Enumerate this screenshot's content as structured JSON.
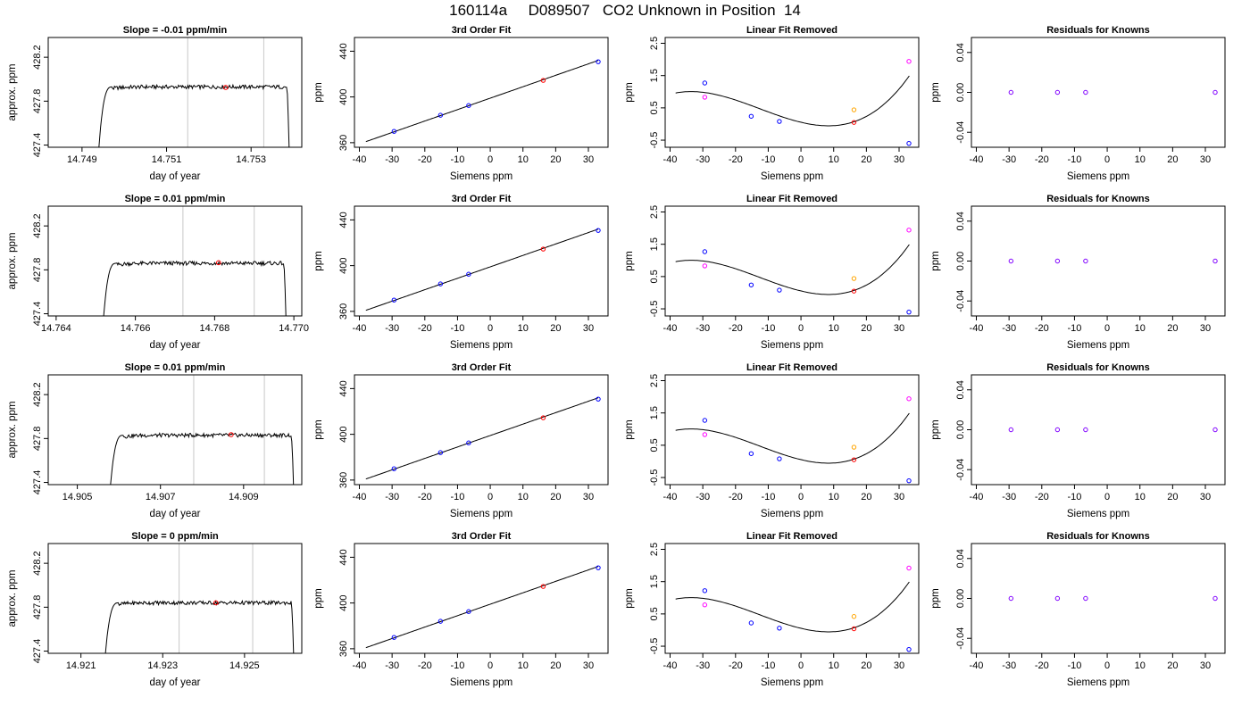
{
  "figure": {
    "title": "160114a     D089507   CO2 Unknown in Position  14"
  },
  "colors": {
    "trace": "#000000",
    "window_line": "#c8c8c8",
    "point_known": "#0000ff",
    "point_unknown": "#ff0000",
    "point_resid_known": "#8000ff",
    "point_lin_extra_a": "#ff00ff",
    "point_lin_extra_b": "#ffa500"
  },
  "chart_data": [
    {
      "row": 0,
      "col": 0,
      "type": "line",
      "title": "Slope =  -0.01  ppm/min",
      "xlabel": "day of year",
      "ylabel": "approx. ppm",
      "xlim": [
        14.7482,
        14.7542
      ],
      "ylim": [
        427.38,
        428.38
      ],
      "xticks": [
        14.749,
        14.751,
        14.753
      ],
      "xtick_labels": [
        "14.749",
        "14.751",
        "14.753"
      ],
      "yticks": [
        427.4,
        427.8,
        428.2
      ],
      "ytick_labels": [
        "427.4",
        "427.8",
        "428.2"
      ],
      "trace": {
        "x_start": 14.7494,
        "x_end": 14.7539,
        "plateau": 427.93,
        "bottom": 427.38
      },
      "window": [
        14.7515,
        14.7533
      ],
      "marker": {
        "x": 14.7524,
        "y": 427.925
      }
    },
    {
      "row": 0,
      "col": 1,
      "type": "scatter",
      "title": "3rd Order Fit",
      "xlabel": "Siemens ppm",
      "ylabel": "ppm",
      "xlim": [
        -41.5,
        36
      ],
      "ylim": [
        356,
        452
      ],
      "xticks": [
        -40,
        -30,
        -20,
        -10,
        0,
        10,
        20,
        30
      ],
      "xtick_labels": [
        "-40",
        "-30",
        "-20",
        "-10",
        "0",
        "10",
        "20",
        "30"
      ],
      "yticks": [
        360,
        400,
        440
      ],
      "ytick_labels": [
        "360",
        "400",
        "440"
      ],
      "curve": {
        "x0": -38,
        "x1": 33,
        "kind": "linear",
        "coef": [
          398.93,
          1.0
        ]
      },
      "points": [
        {
          "x": -29.4,
          "y": 369.9,
          "group": "known"
        },
        {
          "x": -15.2,
          "y": 384.0,
          "group": "known"
        },
        {
          "x": -6.6,
          "y": 392.5,
          "group": "known"
        },
        {
          "x": 16.2,
          "y": 414.5,
          "group": "unknown"
        },
        {
          "x": 33.0,
          "y": 430.8,
          "group": "known"
        }
      ]
    },
    {
      "row": 0,
      "col": 2,
      "type": "scatter",
      "title": "Linear Fit Removed",
      "xlabel": "Siemens ppm",
      "ylabel": "ppm",
      "xlim": [
        -41.5,
        36
      ],
      "ylim": [
        -0.72,
        2.68
      ],
      "xticks": [
        -40,
        -30,
        -20,
        -10,
        0,
        10,
        20,
        30
      ],
      "xtick_labels": [
        "-40",
        "-30",
        "-20",
        "-10",
        "0",
        "10",
        "20",
        "30"
      ],
      "yticks": [
        -0.5,
        0.5,
        1.5,
        2.5
      ],
      "ytick_labels": [
        "-0.5",
        "0.5",
        "1.5",
        "2.5"
      ],
      "curve": {
        "x0": -38.3,
        "x1": 33.1,
        "kind": "cubic",
        "coef": [
          0.0536,
          -0.0242,
          0.00109,
          2.88e-05
        ]
      },
      "points": [
        {
          "x": -29.4,
          "y": 1.27,
          "group": "known"
        },
        {
          "x": -29.4,
          "y": 0.83,
          "group": "extra_a"
        },
        {
          "x": -15.2,
          "y": 0.24,
          "group": "known"
        },
        {
          "x": -6.6,
          "y": 0.08,
          "group": "known"
        },
        {
          "x": 16.2,
          "y": 0.44,
          "group": "extra_b"
        },
        {
          "x": 16.2,
          "y": 0.05,
          "group": "unknown"
        },
        {
          "x": 33.0,
          "y": 1.94,
          "group": "extra_a"
        },
        {
          "x": 33.0,
          "y": -0.6,
          "group": "known"
        }
      ]
    },
    {
      "row": 0,
      "col": 3,
      "type": "scatter",
      "title": "Residuals for Knowns",
      "xlabel": "Siemens ppm",
      "ylabel": "ppm",
      "xlim": [
        -41.5,
        36
      ],
      "ylim": [
        -0.055,
        0.055
      ],
      "xticks": [
        -40,
        -30,
        -20,
        -10,
        0,
        10,
        20,
        30
      ],
      "xtick_labels": [
        "-40",
        "-30",
        "-20",
        "-10",
        "0",
        "10",
        "20",
        "30"
      ],
      "yticks": [
        -0.04,
        0.0,
        0.04
      ],
      "ytick_labels": [
        "-0.04",
        "0.00",
        "0.04"
      ],
      "points": [
        {
          "x": -29.4,
          "y": 0.0,
          "group": "resid"
        },
        {
          "x": -15.2,
          "y": 0.0,
          "group": "resid"
        },
        {
          "x": -6.6,
          "y": 0.0,
          "group": "resid"
        },
        {
          "x": 33.0,
          "y": 0.0,
          "group": "resid"
        }
      ]
    },
    {
      "row": 1,
      "col": 0,
      "type": "line",
      "title": "Slope =  0.01  ppm/min",
      "xlabel": "day of year",
      "ylabel": "approx. ppm",
      "xlim": [
        14.7638,
        14.7702
      ],
      "ylim": [
        427.38,
        428.38
      ],
      "xticks": [
        14.764,
        14.766,
        14.768,
        14.77
      ],
      "xtick_labels": [
        "14.764",
        "14.766",
        "14.768",
        "14.770"
      ],
      "yticks": [
        427.4,
        427.8,
        428.2
      ],
      "ytick_labels": [
        "427.4",
        "427.8",
        "428.2"
      ],
      "trace": {
        "x_start": 14.7652,
        "x_end": 14.7698,
        "plateau": 427.86,
        "bottom": 427.38
      },
      "window": [
        14.7672,
        14.769
      ],
      "marker": {
        "x": 14.7681,
        "y": 427.865
      }
    },
    {
      "row": 1,
      "col": 1,
      "type": "scatter",
      "title": "3rd Order Fit",
      "xlabel": "Siemens ppm",
      "ylabel": "ppm",
      "xlim": [
        -41.5,
        36
      ],
      "ylim": [
        356,
        452
      ],
      "xticks": [
        -40,
        -30,
        -20,
        -10,
        0,
        10,
        20,
        30
      ],
      "xtick_labels": [
        "-40",
        "-30",
        "-20",
        "-10",
        "0",
        "10",
        "20",
        "30"
      ],
      "yticks": [
        360,
        400,
        440
      ],
      "ytick_labels": [
        "360",
        "400",
        "440"
      ],
      "curve": {
        "x0": -38,
        "x1": 33,
        "kind": "linear",
        "coef": [
          398.93,
          1.0
        ]
      },
      "points": [
        {
          "x": -29.4,
          "y": 369.9,
          "group": "known"
        },
        {
          "x": -15.2,
          "y": 384.0,
          "group": "known"
        },
        {
          "x": -6.6,
          "y": 392.5,
          "group": "known"
        },
        {
          "x": 16.2,
          "y": 414.5,
          "group": "unknown"
        },
        {
          "x": 33.0,
          "y": 430.8,
          "group": "known"
        }
      ]
    },
    {
      "row": 1,
      "col": 2,
      "type": "scatter",
      "title": "Linear Fit Removed",
      "xlabel": "Siemens ppm",
      "ylabel": "ppm",
      "xlim": [
        -41.5,
        36
      ],
      "ylim": [
        -0.72,
        2.68
      ],
      "xticks": [
        -40,
        -30,
        -20,
        -10,
        0,
        10,
        20,
        30
      ],
      "xtick_labels": [
        "-40",
        "-30",
        "-20",
        "-10",
        "0",
        "10",
        "20",
        "30"
      ],
      "yticks": [
        -0.5,
        0.5,
        1.5,
        2.5
      ],
      "ytick_labels": [
        "-0.5",
        "0.5",
        "1.5",
        "2.5"
      ],
      "curve": {
        "x0": -38.3,
        "x1": 33.1,
        "kind": "cubic",
        "coef": [
          0.0536,
          -0.0242,
          0.00109,
          2.88e-05
        ]
      },
      "points": [
        {
          "x": -29.4,
          "y": 1.27,
          "group": "known"
        },
        {
          "x": -29.4,
          "y": 0.83,
          "group": "extra_a"
        },
        {
          "x": -15.2,
          "y": 0.24,
          "group": "known"
        },
        {
          "x": -6.6,
          "y": 0.08,
          "group": "known"
        },
        {
          "x": 16.2,
          "y": 0.44,
          "group": "extra_b"
        },
        {
          "x": 16.2,
          "y": 0.05,
          "group": "unknown"
        },
        {
          "x": 33.0,
          "y": 1.94,
          "group": "extra_a"
        },
        {
          "x": 33.0,
          "y": -0.6,
          "group": "known"
        }
      ]
    },
    {
      "row": 1,
      "col": 3,
      "type": "scatter",
      "title": "Residuals for Knowns",
      "xlabel": "Siemens ppm",
      "ylabel": "ppm",
      "xlim": [
        -41.5,
        36
      ],
      "ylim": [
        -0.055,
        0.055
      ],
      "xticks": [
        -40,
        -30,
        -20,
        -10,
        0,
        10,
        20,
        30
      ],
      "xtick_labels": [
        "-40",
        "-30",
        "-20",
        "-10",
        "0",
        "10",
        "20",
        "30"
      ],
      "yticks": [
        -0.04,
        0.0,
        0.04
      ],
      "ytick_labels": [
        "-0.04",
        "0.00",
        "0.04"
      ],
      "points": [
        {
          "x": -29.4,
          "y": 0.0,
          "group": "resid"
        },
        {
          "x": -15.2,
          "y": 0.0,
          "group": "resid"
        },
        {
          "x": -6.6,
          "y": 0.0,
          "group": "resid"
        },
        {
          "x": 33.0,
          "y": 0.0,
          "group": "resid"
        }
      ]
    },
    {
      "row": 2,
      "col": 0,
      "type": "line",
      "title": "Slope =  0.01  ppm/min",
      "xlabel": "day of year",
      "ylabel": "approx. ppm",
      "xlim": [
        14.9043,
        14.9104
      ],
      "ylim": [
        427.38,
        428.38
      ],
      "xticks": [
        14.905,
        14.907,
        14.909
      ],
      "xtick_labels": [
        "14.905",
        "14.907",
        "14.909"
      ],
      "yticks": [
        427.4,
        427.8,
        428.2
      ],
      "ytick_labels": [
        "427.4",
        "427.8",
        "428.2"
      ],
      "trace": {
        "x_start": 14.9058,
        "x_end": 14.9102,
        "plateau": 427.83,
        "bottom": 427.38
      },
      "window": [
        14.9078,
        14.9095
      ],
      "marker": {
        "x": 14.9087,
        "y": 427.835
      }
    },
    {
      "row": 2,
      "col": 1,
      "type": "scatter",
      "title": "3rd Order Fit",
      "xlabel": "Siemens ppm",
      "ylabel": "ppm",
      "xlim": [
        -41.5,
        36
      ],
      "ylim": [
        356,
        452
      ],
      "xticks": [
        -40,
        -30,
        -20,
        -10,
        0,
        10,
        20,
        30
      ],
      "xtick_labels": [
        "-40",
        "-30",
        "-20",
        "-10",
        "0",
        "10",
        "20",
        "30"
      ],
      "yticks": [
        360,
        400,
        440
      ],
      "ytick_labels": [
        "360",
        "400",
        "440"
      ],
      "curve": {
        "x0": -38,
        "x1": 33,
        "kind": "linear",
        "coef": [
          398.93,
          1.0
        ]
      },
      "points": [
        {
          "x": -29.4,
          "y": 369.9,
          "group": "known"
        },
        {
          "x": -15.2,
          "y": 384.0,
          "group": "known"
        },
        {
          "x": -6.6,
          "y": 392.5,
          "group": "known"
        },
        {
          "x": 16.2,
          "y": 414.5,
          "group": "unknown"
        },
        {
          "x": 33.0,
          "y": 430.8,
          "group": "known"
        }
      ]
    },
    {
      "row": 2,
      "col": 2,
      "type": "scatter",
      "title": "Linear Fit Removed",
      "xlabel": "Siemens ppm",
      "ylabel": "ppm",
      "xlim": [
        -41.5,
        36
      ],
      "ylim": [
        -0.72,
        2.68
      ],
      "xticks": [
        -40,
        -30,
        -20,
        -10,
        0,
        10,
        20,
        30
      ],
      "xtick_labels": [
        "-40",
        "-30",
        "-20",
        "-10",
        "0",
        "10",
        "20",
        "30"
      ],
      "yticks": [
        -0.5,
        0.5,
        1.5,
        2.5
      ],
      "ytick_labels": [
        "-0.5",
        "0.5",
        "1.5",
        "2.5"
      ],
      "curve": {
        "x0": -38.3,
        "x1": 33.1,
        "kind": "cubic",
        "coef": [
          0.0536,
          -0.0242,
          0.00109,
          2.88e-05
        ]
      },
      "points": [
        {
          "x": -29.4,
          "y": 1.27,
          "group": "known"
        },
        {
          "x": -29.4,
          "y": 0.83,
          "group": "extra_a"
        },
        {
          "x": -15.2,
          "y": 0.24,
          "group": "known"
        },
        {
          "x": -6.6,
          "y": 0.08,
          "group": "known"
        },
        {
          "x": 16.2,
          "y": 0.44,
          "group": "extra_b"
        },
        {
          "x": 16.2,
          "y": 0.05,
          "group": "unknown"
        },
        {
          "x": 33.0,
          "y": 1.94,
          "group": "extra_a"
        },
        {
          "x": 33.0,
          "y": -0.6,
          "group": "known"
        }
      ]
    },
    {
      "row": 2,
      "col": 3,
      "type": "scatter",
      "title": "Residuals for Knowns",
      "xlabel": "Siemens ppm",
      "ylabel": "ppm",
      "xlim": [
        -41.5,
        36
      ],
      "ylim": [
        -0.055,
        0.055
      ],
      "xticks": [
        -40,
        -30,
        -20,
        -10,
        0,
        10,
        20,
        30
      ],
      "xtick_labels": [
        "-40",
        "-30",
        "-20",
        "-10",
        "0",
        "10",
        "20",
        "30"
      ],
      "yticks": [
        -0.04,
        0.0,
        0.04
      ],
      "ytick_labels": [
        "-0.04",
        "0.00",
        "0.04"
      ],
      "points": [
        {
          "x": -29.4,
          "y": 0.0,
          "group": "resid"
        },
        {
          "x": -15.2,
          "y": 0.0,
          "group": "resid"
        },
        {
          "x": -6.6,
          "y": 0.0,
          "group": "resid"
        },
        {
          "x": 33.0,
          "y": 0.0,
          "group": "resid"
        }
      ]
    },
    {
      "row": 3,
      "col": 0,
      "type": "line",
      "title": "Slope =  0  ppm/min",
      "xlabel": "day of year",
      "ylabel": "approx. ppm",
      "xlim": [
        14.9202,
        14.9264
      ],
      "ylim": [
        427.38,
        428.38
      ],
      "xticks": [
        14.921,
        14.923,
        14.925
      ],
      "xtick_labels": [
        "14.921",
        "14.923",
        "14.925"
      ],
      "yticks": [
        427.4,
        427.8,
        428.2
      ],
      "ytick_labels": [
        "427.4",
        "427.8",
        "428.2"
      ],
      "trace": {
        "x_start": 14.9216,
        "x_end": 14.9262,
        "plateau": 427.84,
        "bottom": 427.38
      },
      "window": [
        14.9234,
        14.9252
      ],
      "marker": {
        "x": 14.9243,
        "y": 427.84
      }
    },
    {
      "row": 3,
      "col": 1,
      "type": "scatter",
      "title": "3rd Order Fit",
      "xlabel": "Siemens ppm",
      "ylabel": "ppm",
      "xlim": [
        -41.5,
        36
      ],
      "ylim": [
        356,
        452
      ],
      "xticks": [
        -40,
        -30,
        -20,
        -10,
        0,
        10,
        20,
        30
      ],
      "xtick_labels": [
        "-40",
        "-30",
        "-20",
        "-10",
        "0",
        "10",
        "20",
        "30"
      ],
      "yticks": [
        360,
        400,
        440
      ],
      "ytick_labels": [
        "360",
        "400",
        "440"
      ],
      "curve": {
        "x0": -38,
        "x1": 33,
        "kind": "linear",
        "coef": [
          398.93,
          1.0
        ]
      },
      "points": [
        {
          "x": -29.4,
          "y": 369.9,
          "group": "known"
        },
        {
          "x": -15.2,
          "y": 384.0,
          "group": "known"
        },
        {
          "x": -6.6,
          "y": 392.5,
          "group": "known"
        },
        {
          "x": 16.2,
          "y": 414.5,
          "group": "unknown"
        },
        {
          "x": 33.0,
          "y": 430.8,
          "group": "known"
        }
      ]
    },
    {
      "row": 3,
      "col": 2,
      "type": "scatter",
      "title": "Linear Fit Removed",
      "xlabel": "Siemens ppm",
      "ylabel": "ppm",
      "xlim": [
        -41.5,
        36
      ],
      "ylim": [
        -0.72,
        2.68
      ],
      "xticks": [
        -40,
        -30,
        -20,
        -10,
        0,
        10,
        20,
        30
      ],
      "xtick_labels": [
        "-40",
        "-30",
        "-20",
        "-10",
        "0",
        "10",
        "20",
        "30"
      ],
      "yticks": [
        -0.5,
        0.5,
        1.5,
        2.5
      ],
      "ytick_labels": [
        "-0.5",
        "0.5",
        "1.5",
        "2.5"
      ],
      "curve": {
        "x0": -38.3,
        "x1": 33.1,
        "kind": "cubic",
        "coef": [
          0.0536,
          -0.0242,
          0.00109,
          2.88e-05
        ]
      },
      "points": [
        {
          "x": -29.4,
          "y": 1.22,
          "group": "known"
        },
        {
          "x": -29.4,
          "y": 0.78,
          "group": "extra_a"
        },
        {
          "x": -15.2,
          "y": 0.22,
          "group": "known"
        },
        {
          "x": -6.6,
          "y": 0.06,
          "group": "known"
        },
        {
          "x": 16.2,
          "y": 0.42,
          "group": "extra_b"
        },
        {
          "x": 16.2,
          "y": 0.04,
          "group": "unknown"
        },
        {
          "x": 33.0,
          "y": 1.92,
          "group": "extra_a"
        },
        {
          "x": 33.0,
          "y": -0.6,
          "group": "known"
        }
      ]
    },
    {
      "row": 3,
      "col": 3,
      "type": "scatter",
      "title": "Residuals for Knowns",
      "xlabel": "Siemens ppm",
      "ylabel": "ppm",
      "xlim": [
        -41.5,
        36
      ],
      "ylim": [
        -0.055,
        0.055
      ],
      "xticks": [
        -40,
        -30,
        -20,
        -10,
        0,
        10,
        20,
        30
      ],
      "xtick_labels": [
        "-40",
        "-30",
        "-20",
        "-10",
        "0",
        "10",
        "20",
        "30"
      ],
      "yticks": [
        -0.04,
        0.0,
        0.04
      ],
      "ytick_labels": [
        "-0.04",
        "0.00",
        "0.04"
      ],
      "points": [
        {
          "x": -29.4,
          "y": 0.0,
          "group": "resid"
        },
        {
          "x": -15.2,
          "y": 0.0,
          "group": "resid"
        },
        {
          "x": -6.6,
          "y": 0.0,
          "group": "resid"
        },
        {
          "x": 33.0,
          "y": 0.0,
          "group": "resid"
        }
      ]
    }
  ]
}
